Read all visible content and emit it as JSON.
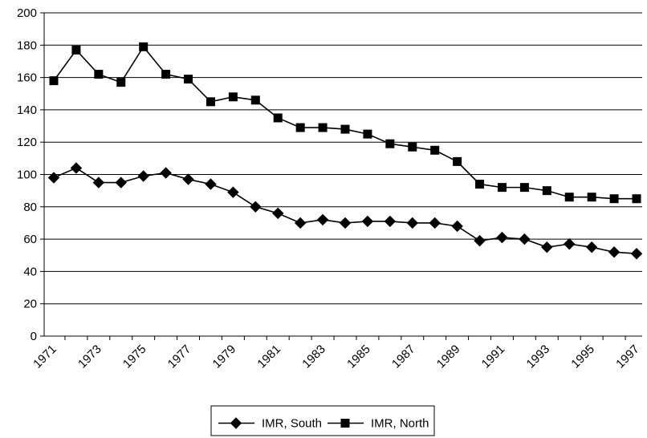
{
  "chart_data": {
    "type": "line",
    "title": "",
    "xlabel": "",
    "ylabel": "",
    "x": [
      1971,
      1972,
      1973,
      1974,
      1975,
      1976,
      1977,
      1978,
      1979,
      1980,
      1981,
      1982,
      1983,
      1984,
      1985,
      1986,
      1987,
      1988,
      1989,
      1990,
      1991,
      1992,
      1993,
      1994,
      1995,
      1996,
      1997
    ],
    "x_tick_labels": [
      "1971",
      "1973",
      "1975",
      "1977",
      "1979",
      "1981",
      "1983",
      "1985",
      "1987",
      "1989",
      "1991",
      "1993",
      "1995",
      "1997"
    ],
    "ylim": [
      0,
      200
    ],
    "y_ticks": [
      0,
      20,
      40,
      60,
      80,
      100,
      120,
      140,
      160,
      180,
      200
    ],
    "grid": "horizontal",
    "legend_position": "bottom",
    "series": [
      {
        "name": "IMR, South",
        "marker": "diamond",
        "color": "#000000",
        "values": [
          98,
          104,
          95,
          95,
          99,
          101,
          97,
          94,
          89,
          80,
          76,
          70,
          72,
          70,
          71,
          71,
          70,
          70,
          68,
          59,
          61,
          60,
          55,
          57,
          55,
          52,
          51
        ]
      },
      {
        "name": "IMR, North",
        "marker": "square",
        "color": "#000000",
        "values": [
          158,
          177,
          162,
          157,
          179,
          162,
          159,
          145,
          148,
          146,
          135,
          129,
          129,
          128,
          125,
          119,
          117,
          115,
          108,
          94,
          92,
          92,
          90,
          86,
          86,
          85,
          85
        ]
      }
    ]
  }
}
